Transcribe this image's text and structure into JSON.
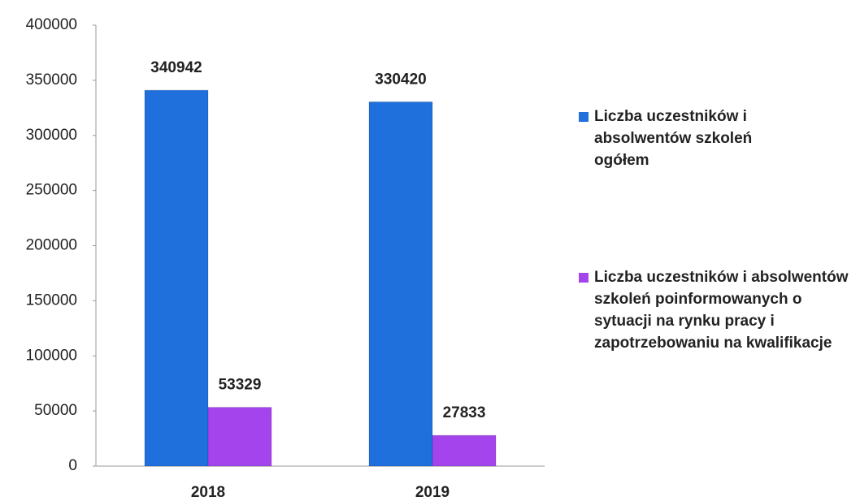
{
  "chart_data": {
    "type": "bar",
    "categories": [
      "2018",
      "2019"
    ],
    "series": [
      {
        "name": "Liczba uczestników i absolwentów  szkoleń ogółem",
        "color": "#1f6fdc",
        "values": [
          340942,
          330420
        ]
      },
      {
        "name": "Liczba uczestników i absolwentów szkoleń poinformowanych o sytuacji na rynku pracy i zapotrzebowaniu na kwalifikacje",
        "color": "#a344ec",
        "values": [
          53329,
          27833
        ]
      }
    ],
    "ylim": [
      0,
      400000
    ],
    "yticks": [
      0,
      50000,
      100000,
      150000,
      200000,
      250000,
      300000,
      350000,
      400000
    ],
    "grid": false,
    "legend": "right"
  }
}
